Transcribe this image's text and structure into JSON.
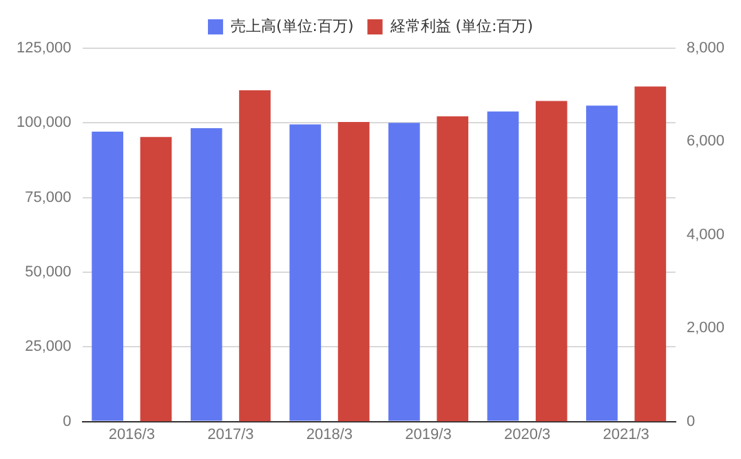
{
  "chart_data": {
    "type": "bar",
    "categories": [
      "2016/3",
      "2017/3",
      "2018/3",
      "2019/3",
      "2020/3",
      "2021/3"
    ],
    "series": [
      {
        "name": "売上高(単位:百万)",
        "color": "#6079f2",
        "values": [
          97100,
          98200,
          99500,
          100000,
          103800,
          105800
        ]
      },
      {
        "name": "経常利益 (単位:百万)",
        "color": "#cf453c",
        "axis": "y2",
        "values": [
          6100,
          7100,
          6420,
          6540,
          6870,
          7180
        ]
      }
    ],
    "ylim": [
      0,
      125000
    ],
    "yticks": [
      {
        "value": 0,
        "label": "0"
      },
      {
        "value": 25000,
        "label": "25,000"
      },
      {
        "value": 50000,
        "label": "50,000"
      },
      {
        "value": 75000,
        "label": "75,000"
      },
      {
        "value": 100000,
        "label": "100,000"
      },
      {
        "value": 125000,
        "label": "125,000"
      }
    ],
    "y2lim": [
      0,
      8000
    ],
    "y2ticks": [
      {
        "value": 0,
        "label": "0"
      },
      {
        "value": 2000,
        "label": "2,000"
      },
      {
        "value": 4000,
        "label": "4,000"
      },
      {
        "value": 6000,
        "label": "6,000"
      },
      {
        "value": 8000,
        "label": "8,000"
      }
    ],
    "grid": "y",
    "legend": "top"
  }
}
